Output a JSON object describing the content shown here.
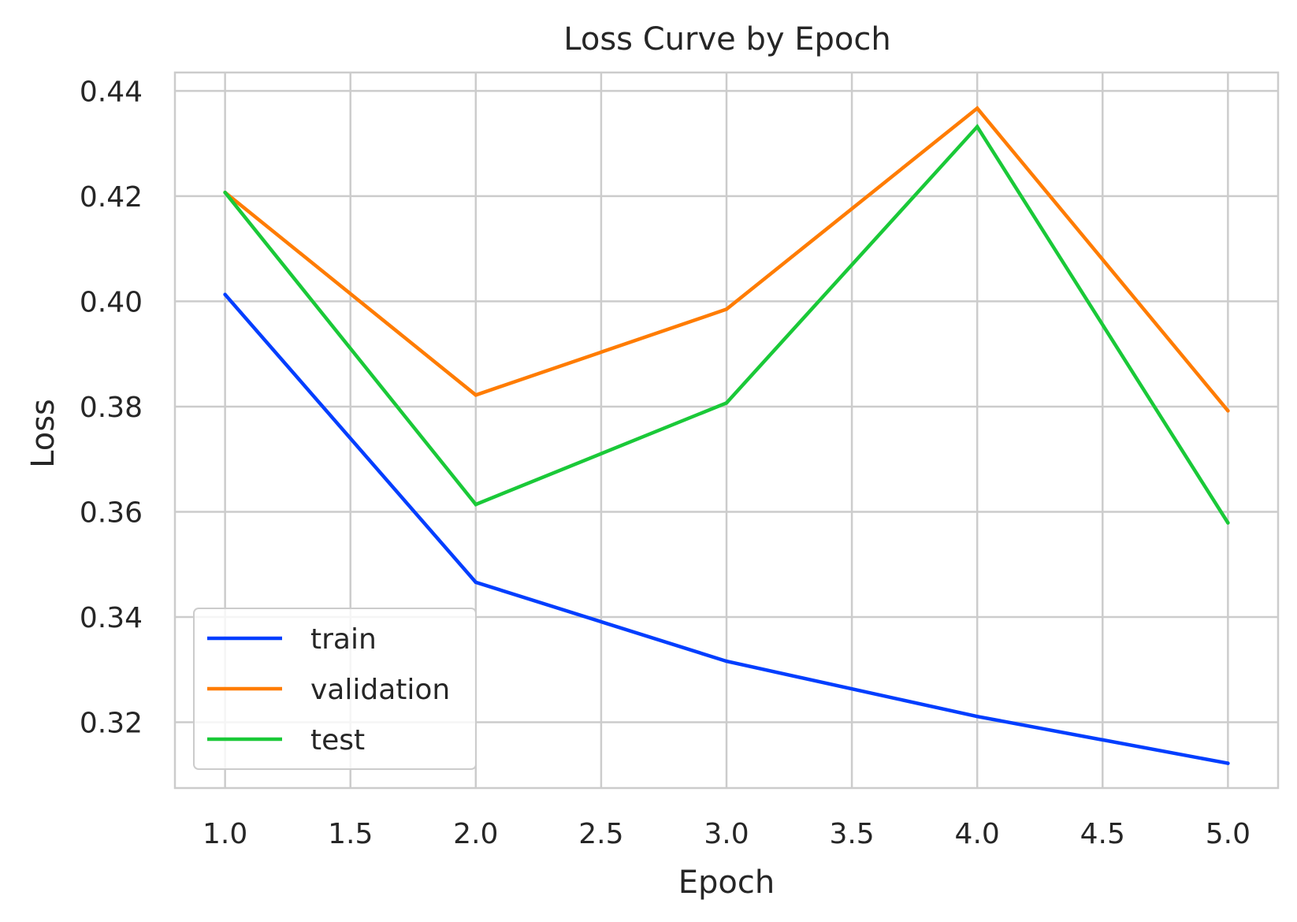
{
  "chart_data": {
    "type": "line",
    "title": "Loss Curve by Epoch",
    "xlabel": "Epoch",
    "ylabel": "Loss",
    "x": [
      1.0,
      2.0,
      3.0,
      4.0,
      5.0
    ],
    "xlim": [
      0.8,
      5.2
    ],
    "ylim": [
      0.3075,
      0.4435
    ],
    "xticks": [
      "1.0",
      "1.5",
      "2.0",
      "2.5",
      "3.0",
      "3.5",
      "4.0",
      "4.5",
      "5.0"
    ],
    "yticks": [
      "0.32",
      "0.34",
      "0.36",
      "0.38",
      "0.40",
      "0.42",
      "0.44"
    ],
    "grid": true,
    "legend_position": "lower-left",
    "series": [
      {
        "name": "train",
        "color": "#023eff",
        "values": [
          0.4013,
          0.3466,
          0.3316,
          0.3211,
          0.3122
        ]
      },
      {
        "name": "validation",
        "color": "#ff7c00",
        "values": [
          0.4207,
          0.3822,
          0.3985,
          0.4367,
          0.3792
        ]
      },
      {
        "name": "test",
        "color": "#1ac938",
        "values": [
          0.4207,
          0.3614,
          0.3807,
          0.4332,
          0.3579
        ]
      }
    ]
  }
}
